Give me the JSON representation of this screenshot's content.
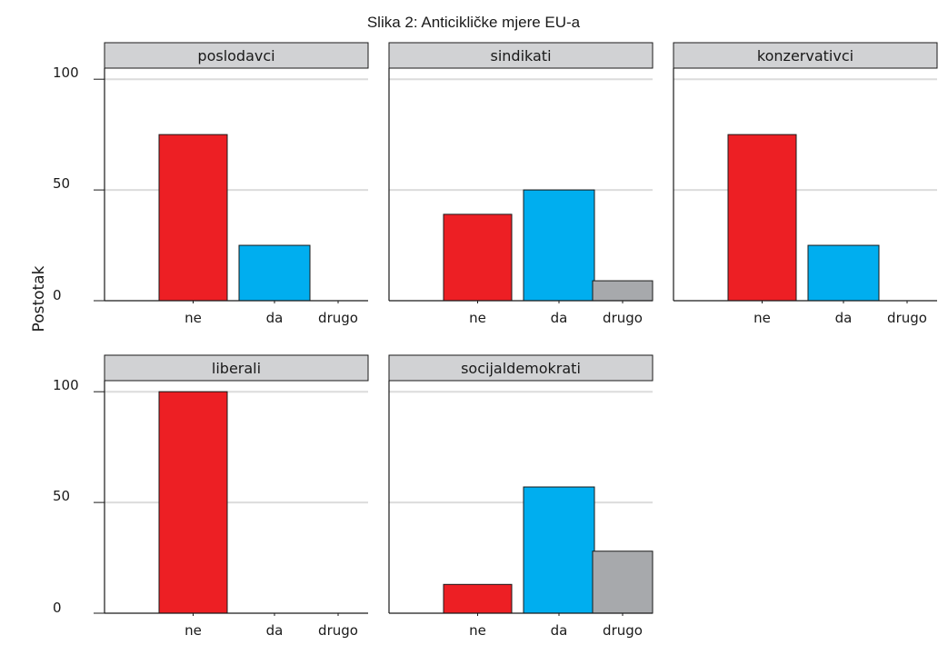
{
  "chart_data": {
    "type": "bar",
    "title": "Slika 2: Anticikličke mjere EU-a",
    "ylabel": "Postotak",
    "xlabel": "",
    "ylim": [
      0,
      100
    ],
    "yticks": [
      0,
      50,
      100
    ],
    "categories": [
      "ne",
      "da",
      "drugo"
    ],
    "grid": true,
    "facets": [
      {
        "name": "poslodavci",
        "values": [
          75,
          25,
          0
        ]
      },
      {
        "name": "sindikati",
        "values": [
          39,
          50,
          9
        ]
      },
      {
        "name": "konzervativci",
        "values": [
          75,
          25,
          0
        ]
      },
      {
        "name": "liberali",
        "values": [
          100,
          0,
          0
        ]
      },
      {
        "name": "socijaldemokrati",
        "values": [
          13,
          57,
          28
        ]
      }
    ],
    "colors": {
      "ne": "#ed1f24",
      "da": "#00aeef",
      "drugo": "#a7a9ac",
      "strip": "#d1d2d4",
      "grid": "#dcdcdc"
    }
  }
}
